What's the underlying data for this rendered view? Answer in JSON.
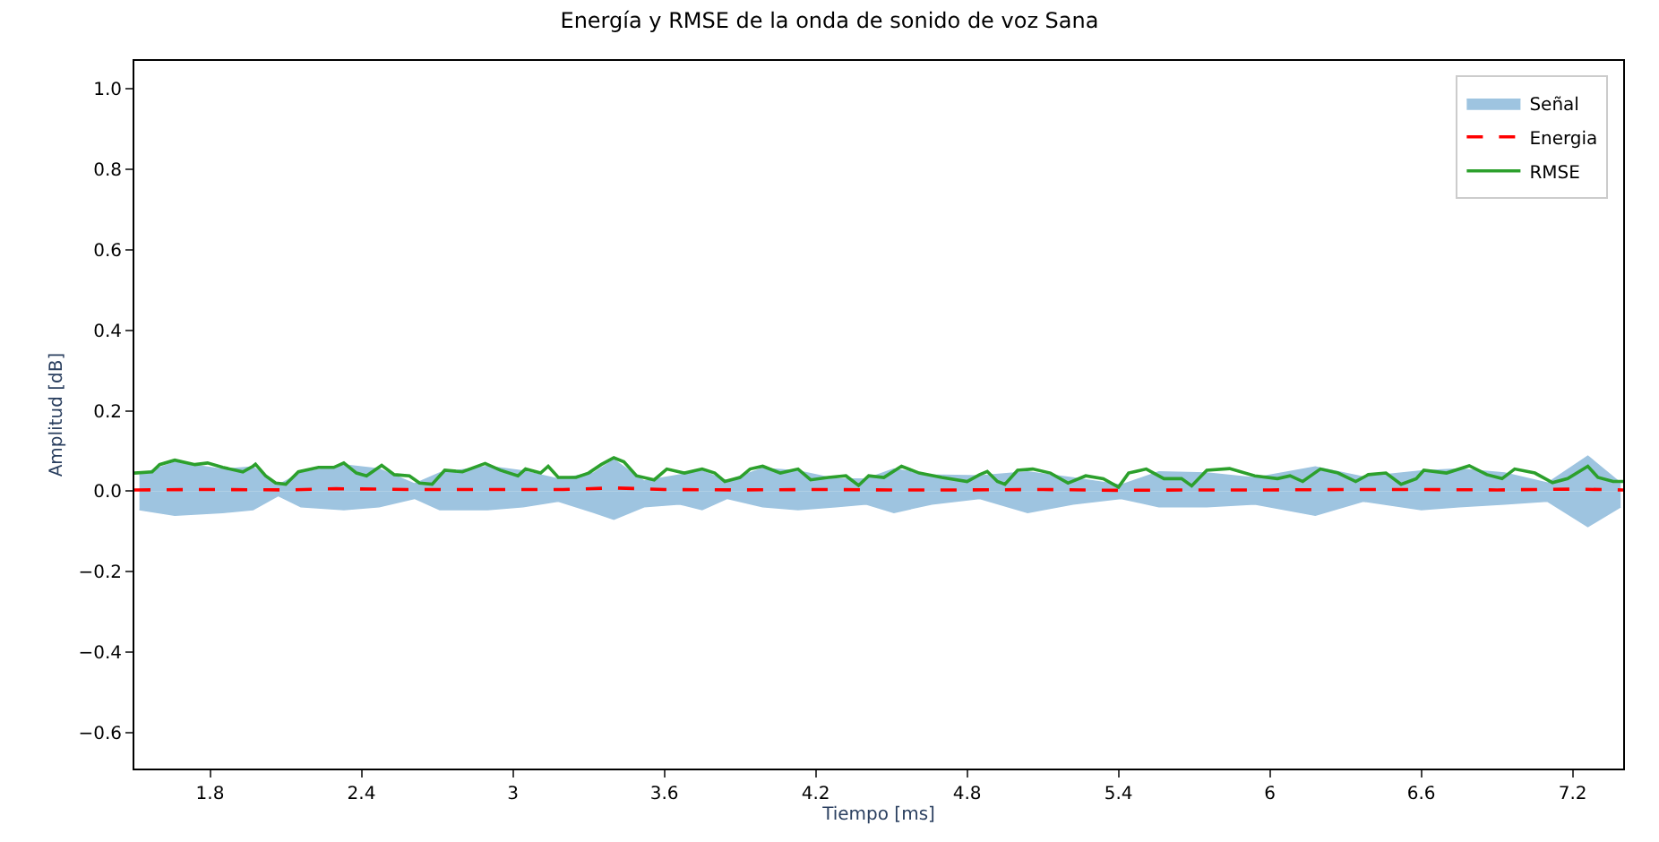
{
  "chart_data": {
    "type": "line",
    "title": "Energía y RMSE de la onda de sonido de voz Sana",
    "xlabel": "Tiempo [ms]",
    "ylabel": "Amplitud [dB]",
    "xlim": [
      1.5,
      7.4
    ],
    "ylim": [
      -0.69,
      1.07
    ],
    "xticks": [
      1.8,
      2.4,
      3,
      3.6,
      4.2,
      4.8,
      5.4,
      6,
      6.6,
      7.2
    ],
    "yticks": [
      {
        "value": -0.6,
        "label": "−0.6"
      },
      {
        "value": -0.4,
        "label": "−0.4"
      },
      {
        "value": -0.2,
        "label": "−0.2"
      },
      {
        "value": 0,
        "label": "0.0"
      },
      0.2,
      0.4,
      0.6,
      0.8,
      {
        "value": 1,
        "label": "1.0"
      }
    ],
    "legend": "top right",
    "series": [
      {
        "name": "Señal",
        "type": "area",
        "color": "#9ec4e0",
        "x": [
          1.52,
          1.66,
          1.85,
          1.97,
          2.07,
          2.16,
          2.33,
          2.47,
          2.61,
          2.71,
          2.9,
          3.04,
          3.18,
          3.32,
          3.4,
          3.52,
          3.66,
          3.75,
          3.85,
          3.99,
          4.13,
          4.28,
          4.4,
          4.51,
          4.66,
          4.85,
          5.04,
          5.22,
          5.41,
          5.56,
          5.75,
          5.94,
          6.18,
          6.37,
          6.6,
          6.75,
          6.93,
          7.1,
          7.26,
          7.39
        ],
        "values": [
          0.04,
          0.072,
          0.054,
          0.06,
          0.015,
          0.045,
          0.065,
          0.055,
          0.018,
          0.045,
          0.062,
          0.05,
          0.03,
          0.045,
          0.078,
          0.025,
          0.04,
          0.05,
          0.025,
          0.057,
          0.05,
          0.03,
          0.03,
          0.055,
          0.04,
          0.038,
          0.048,
          0.033,
          0.015,
          0.048,
          0.045,
          0.033,
          0.06,
          0.035,
          0.05,
          0.055,
          0.045,
          0.02,
          0.087,
          0.02
        ]
      },
      {
        "type": "area",
        "color": "#9ec4e0",
        "x": [
          1.52,
          1.66,
          1.85,
          1.97,
          2.07,
          2.16,
          2.33,
          2.47,
          2.61,
          2.71,
          2.9,
          3.04,
          3.18,
          3.32,
          3.4,
          3.52,
          3.66,
          3.75,
          3.85,
          3.99,
          4.13,
          4.28,
          4.4,
          4.51,
          4.66,
          4.85,
          5.04,
          5.22,
          5.41,
          5.56,
          5.75,
          5.94,
          6.18,
          6.37,
          6.6,
          6.75,
          6.93,
          7.1,
          7.26,
          7.39
        ],
        "values": [
          -0.046,
          -0.06,
          -0.053,
          -0.046,
          -0.011,
          -0.039,
          -0.046,
          -0.039,
          -0.018,
          -0.046,
          -0.046,
          -0.039,
          -0.025,
          -0.053,
          -0.07,
          -0.039,
          -0.032,
          -0.046,
          -0.018,
          -0.039,
          -0.046,
          -0.039,
          -0.032,
          -0.053,
          -0.032,
          -0.018,
          -0.053,
          -0.032,
          -0.018,
          -0.039,
          -0.039,
          -0.032,
          -0.06,
          -0.025,
          -0.046,
          -0.039,
          -0.032,
          -0.025,
          -0.088,
          -0.039
        ]
      },
      {
        "name": "Energia",
        "color": "#ff0000",
        "line_style": "dashed",
        "x": [
          1.5,
          1.8,
          2.1,
          2.3,
          2.6,
          2.9,
          3.2,
          3.4,
          3.6,
          3.9,
          4.2,
          4.5,
          4.8,
          5.1,
          5.4,
          5.7,
          6.0,
          6.3,
          6.6,
          6.9,
          7.2,
          7.4
        ],
        "values": [
          0.003,
          0.004,
          0.003,
          0.006,
          0.004,
          0.004,
          0.004,
          0.008,
          0.004,
          0.003,
          0.004,
          0.003,
          0.003,
          0.004,
          0.002,
          0.003,
          0.003,
          0.004,
          0.004,
          0.003,
          0.005,
          0.003
        ]
      },
      {
        "name": "RMSE",
        "color": "#2ca02c",
        "line_style": "solid",
        "x": [
          1.5,
          1.57,
          1.6,
          1.66,
          1.74,
          1.79,
          1.85,
          1.93,
          1.97,
          1.98,
          2.02,
          2.06,
          2.1,
          2.15,
          2.23,
          2.29,
          2.33,
          2.38,
          2.42,
          2.48,
          2.53,
          2.59,
          2.63,
          2.68,
          2.73,
          2.8,
          2.89,
          2.95,
          3.02,
          3.05,
          3.11,
          3.14,
          3.18,
          3.25,
          3.3,
          3.35,
          3.4,
          3.44,
          3.49,
          3.56,
          3.61,
          3.68,
          3.75,
          3.8,
          3.84,
          3.9,
          3.94,
          3.99,
          4.06,
          4.13,
          4.18,
          4.25,
          4.32,
          4.37,
          4.41,
          4.47,
          4.54,
          4.61,
          4.7,
          4.8,
          4.85,
          4.88,
          4.92,
          4.95,
          5.0,
          5.06,
          5.13,
          5.2,
          5.27,
          5.34,
          5.4,
          5.44,
          5.51,
          5.58,
          5.65,
          5.69,
          5.75,
          5.84,
          5.94,
          6.03,
          6.08,
          6.13,
          6.2,
          6.27,
          6.34,
          6.39,
          6.46,
          6.52,
          6.58,
          6.61,
          6.7,
          6.79,
          6.86,
          6.92,
          6.97,
          7.05,
          7.12,
          7.18,
          7.26,
          7.3,
          7.36,
          7.4
        ],
        "values": [
          0.045,
          0.048,
          0.066,
          0.077,
          0.066,
          0.07,
          0.059,
          0.048,
          0.062,
          0.067,
          0.038,
          0.02,
          0.017,
          0.048,
          0.059,
          0.059,
          0.07,
          0.045,
          0.038,
          0.064,
          0.041,
          0.038,
          0.02,
          0.017,
          0.052,
          0.048,
          0.069,
          0.052,
          0.038,
          0.055,
          0.045,
          0.062,
          0.034,
          0.034,
          0.045,
          0.066,
          0.083,
          0.073,
          0.038,
          0.028,
          0.055,
          0.045,
          0.055,
          0.045,
          0.024,
          0.034,
          0.055,
          0.062,
          0.045,
          0.055,
          0.028,
          0.034,
          0.038,
          0.014,
          0.038,
          0.034,
          0.062,
          0.045,
          0.034,
          0.024,
          0.041,
          0.049,
          0.024,
          0.017,
          0.052,
          0.055,
          0.045,
          0.02,
          0.038,
          0.031,
          0.01,
          0.045,
          0.055,
          0.031,
          0.031,
          0.013,
          0.052,
          0.056,
          0.038,
          0.031,
          0.038,
          0.024,
          0.055,
          0.045,
          0.024,
          0.041,
          0.045,
          0.017,
          0.031,
          0.052,
          0.045,
          0.063,
          0.041,
          0.031,
          0.055,
          0.045,
          0.021,
          0.031,
          0.062,
          0.034,
          0.024,
          0.024
        ]
      }
    ]
  }
}
